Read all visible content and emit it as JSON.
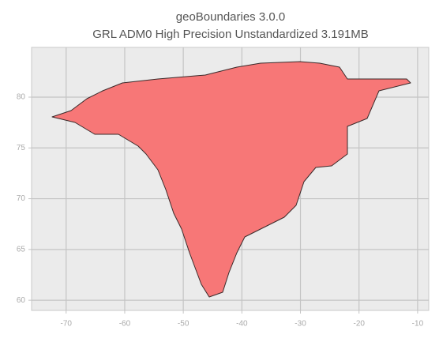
{
  "chart_data": {
    "type": "map",
    "title": "geoBoundaries 3.0.0",
    "subtitle": "GRL ADM0 High Precision Unstandardized 3.191MB",
    "xlim": [
      -75.9,
      -8.1
    ],
    "ylim": [
      59.0,
      84.9
    ],
    "xticks": [
      -70,
      -60,
      -50,
      -40,
      -30,
      -20,
      -10
    ],
    "yticks": [
      60,
      65,
      70,
      75,
      80
    ],
    "grid": true,
    "color": "#f77777"
  }
}
